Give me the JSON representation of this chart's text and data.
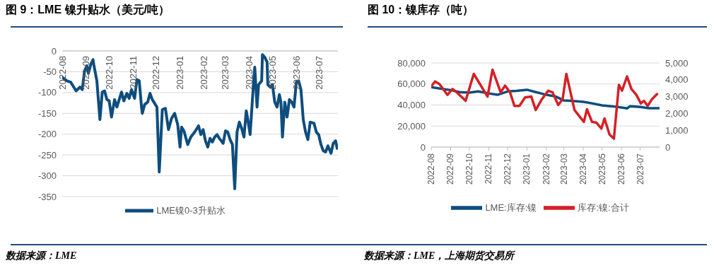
{
  "chart_data": [
    {
      "type": "line",
      "title": "图 9：LME 镍升贴水（美元/吨）",
      "annotations": [
        "数据来源：LME"
      ],
      "x": [
        "2022-08-01",
        "2022-08-07",
        "2022-08-12",
        "2022-08-19",
        "2022-08-24",
        "2022-08-27",
        "2022-08-30",
        "2022-09-02",
        "2022-09-04",
        "2022-09-07",
        "2022-09-10",
        "2022-09-11",
        "2022-09-15",
        "2022-09-19",
        "2022-09-22",
        "2022-09-25",
        "2022-09-28",
        "2022-10-01",
        "2022-10-04",
        "2022-10-08",
        "2022-10-11",
        "2022-10-14",
        "2022-10-17",
        "2022-10-20",
        "2022-10-24",
        "2022-10-27",
        "2022-10-30",
        "2022-11-03",
        "2022-11-06",
        "2022-11-09",
        "2022-11-12",
        "2022-11-13",
        "2022-11-16",
        "2022-11-20",
        "2022-11-23",
        "2022-11-26",
        "2022-11-29",
        "2022-12-02",
        "2022-12-05",
        "2022-12-09",
        "2022-12-13",
        "2022-12-17",
        "2022-12-21",
        "2022-12-25",
        "2022-12-29",
        "2023-01-01",
        "2023-01-03",
        "2023-01-06",
        "2023-01-11",
        "2023-01-15",
        "2023-01-20",
        "2023-01-25",
        "2023-01-28",
        "2023-01-31",
        "2023-02-03",
        "2023-02-06",
        "2023-02-09",
        "2023-02-12",
        "2023-02-15",
        "2023-02-18",
        "2023-02-21",
        "2023-02-26",
        "2023-03-01",
        "2023-03-04",
        "2023-03-07",
        "2023-03-10",
        "2023-03-13",
        "2023-03-16",
        "2023-03-19",
        "2023-03-22",
        "2023-03-25",
        "2023-03-28",
        "2023-03-30",
        "2023-04-02",
        "2023-04-05",
        "2023-04-08",
        "2023-04-11",
        "2023-04-13",
        "2023-04-17",
        "2023-04-18",
        "2023-04-21",
        "2023-04-24",
        "2023-04-25",
        "2023-04-28",
        "2023-05-01",
        "2023-05-04",
        "2023-05-07",
        "2023-05-10",
        "2023-05-12",
        "2023-05-14",
        "2023-05-17",
        "2023-05-20",
        "2023-05-23",
        "2023-05-26",
        "2023-05-29",
        "2023-06-01",
        "2023-06-04",
        "2023-06-07",
        "2023-06-10",
        "2023-06-13",
        "2023-06-16",
        "2023-06-19",
        "2023-06-24",
        "2023-06-27",
        "2023-06-30",
        "2023-07-03",
        "2023-07-06",
        "2023-07-09",
        "2023-07-12",
        "2023-07-16",
        "2023-07-19",
        "2023-07-22",
        "2023-07-24"
      ],
      "series": [
        {
          "name": "LME镍0-3升贴水",
          "color": "#0e4d7e",
          "values": [
            -63,
            -72,
            -75,
            -96,
            -87,
            -93,
            -48,
            -36,
            -54,
            -33,
            -21,
            -33,
            -72,
            -165,
            -99,
            -96,
            -117,
            -120,
            -159,
            -117,
            -135,
            -117,
            -99,
            -120,
            -102,
            -114,
            -93,
            -114,
            -69,
            -72,
            -135,
            -150,
            -129,
            -123,
            -102,
            -117,
            -126,
            -135,
            -291,
            -141,
            -138,
            -189,
            -162,
            -150,
            -177,
            -231,
            -183,
            -192,
            -225,
            -207,
            -195,
            -180,
            -201,
            -189,
            -216,
            -231,
            -210,
            -219,
            -207,
            -201,
            -210,
            -222,
            -192,
            -195,
            -213,
            -225,
            -331,
            -195,
            -171,
            -186,
            -207,
            -144,
            -165,
            -201,
            -117,
            -39,
            -135,
            -81,
            -72,
            -9,
            -15,
            -27,
            -81,
            -87,
            -81,
            -123,
            -135,
            -105,
            -123,
            -207,
            -123,
            -159,
            -117,
            -123,
            -135,
            -75,
            -72,
            -93,
            -165,
            -195,
            -213,
            -171,
            -174,
            -195,
            -201,
            -225,
            -240,
            -243,
            -228,
            -246,
            -222,
            -216,
            -234
          ]
        }
      ],
      "xlim": [
        "2022-08-01",
        "2023-07-25"
      ],
      "xticks": [
        "2022-08",
        "2022-09",
        "2022-10",
        "2022-11",
        "2022-12",
        "2023-01",
        "2023-02",
        "2023-03",
        "2023-04",
        "2023-05",
        "2023-06",
        "2023-07"
      ],
      "ylim": [
        -350,
        0
      ],
      "yticks": [
        0,
        -50,
        -100,
        -150,
        -200,
        -250,
        -300,
        -350
      ],
      "grid": "y",
      "legend": "bottom"
    },
    {
      "type": "line",
      "title": "图 10：镍库存（吨）",
      "annotations": [
        "数据来源：LME，上海期货交易所"
      ],
      "series": [
        {
          "name": "LME:库存:镍",
          "color": "#0e4d7e",
          "x": [
            "2022-08-01",
            "2022-08-15",
            "2022-09-01",
            "2022-09-15",
            "2022-10-01",
            "2022-10-15",
            "2022-11-01",
            "2022-11-15",
            "2022-12-01",
            "2022-12-15",
            "2023-01-01",
            "2023-01-15",
            "2023-02-01",
            "2023-02-15",
            "2023-03-01",
            "2023-03-15",
            "2023-04-01",
            "2023-04-15",
            "2023-05-01",
            "2023-05-15",
            "2023-06-01",
            "2023-06-10",
            "2023-06-15",
            "2023-07-01",
            "2023-07-15",
            "2023-07-31"
          ],
          "values": [
            57000,
            55600,
            54200,
            52300,
            51800,
            52900,
            51000,
            49700,
            52900,
            53400,
            54500,
            52300,
            49700,
            48300,
            44300,
            43800,
            43000,
            41600,
            39700,
            38900,
            37600,
            36800,
            38900,
            38100,
            37000,
            37000
          ]
        },
        {
          "name": "库存:镍:合计",
          "color": "#d42027",
          "axis": "y2",
          "x": [
            "2022-08-01",
            "2022-08-07",
            "2022-08-14",
            "2022-08-27",
            "2022-09-04",
            "2022-09-11",
            "2022-09-25",
            "2022-10-08",
            "2022-10-30",
            "2022-11-07",
            "2022-11-20",
            "2022-11-27",
            "2022-12-05",
            "2022-12-12",
            "2022-12-20",
            "2022-12-29",
            "2023-01-08",
            "2023-01-15",
            "2023-01-25",
            "2023-02-04",
            "2023-02-11",
            "2023-02-20",
            "2023-02-27",
            "2023-03-05",
            "2023-03-18",
            "2023-04-02",
            "2023-04-07",
            "2023-04-15",
            "2023-04-22",
            "2023-04-30",
            "2023-05-05",
            "2023-05-13",
            "2023-05-20",
            "2023-05-28",
            "2023-06-02",
            "2023-06-10",
            "2023-06-17",
            "2023-06-25",
            "2023-07-02",
            "2023-07-07",
            "2023-07-13",
            "2023-07-20",
            "2023-07-28"
          ],
          "values": [
            3600,
            3900,
            3750,
            3100,
            3450,
            3250,
            2750,
            4350,
            3000,
            4600,
            3250,
            3650,
            3250,
            2450,
            2450,
            2950,
            3000,
            2200,
            2850,
            3350,
            3250,
            2500,
            2850,
            4350,
            2200,
            1500,
            2250,
            1500,
            1450,
            1100,
            1700,
            750,
            500,
            3700,
            3350,
            4200,
            3450,
            3100,
            2600,
            2750,
            2450,
            2850,
            3150
          ]
        }
      ],
      "xlim": [
        "2022-08-01",
        "2023-08-01"
      ],
      "xticks": [
        "2022-08",
        "2022-09",
        "2022-10",
        "2022-11",
        "2022-12",
        "2023-01",
        "2023-02",
        "2023-03",
        "2023-04",
        "2023-05",
        "2023-06",
        "2023-07"
      ],
      "ylim": [
        0,
        80000
      ],
      "yticks": [
        0,
        {
          "value": 20000,
          "label": "20,000"
        },
        {
          "value": 40000,
          "label": "40,000"
        },
        {
          "value": 60000,
          "label": "60,000"
        },
        {
          "value": 80000,
          "label": "80,000"
        }
      ],
      "y2lim": [
        0,
        5000
      ],
      "y2ticks": [
        0,
        {
          "value": 1000,
          "label": "1,000"
        },
        {
          "value": 2000,
          "label": "2,000"
        },
        {
          "value": 3000,
          "label": "3,000"
        },
        {
          "value": 4000,
          "label": "4,000"
        },
        {
          "value": 5000,
          "label": "5,000"
        }
      ],
      "grid": "y",
      "legend": "bottom"
    }
  ]
}
